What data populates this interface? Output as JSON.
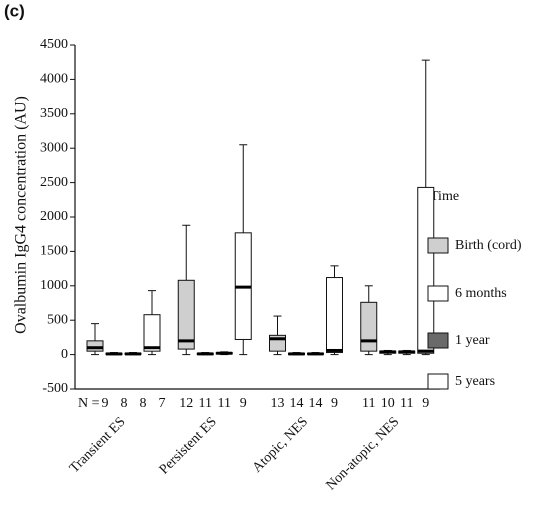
{
  "chart_data": {
    "type": "box",
    "panel_label": "(c)",
    "y_label": "Ovalbumin IgG4 concentration (AU)",
    "legend_title": "Time",
    "n_prefix": "N =",
    "categories": [
      "Transient ES",
      "Persistent ES",
      "Atopic, NES",
      "Non-atopic, NES"
    ],
    "ylim": [
      -500,
      4500
    ],
    "yticks": [
      -500,
      0,
      500,
      1000,
      1500,
      2000,
      2500,
      3000,
      3500,
      4000,
      4500
    ],
    "series": [
      {
        "name": "Birth (cord)",
        "color": "#cfcfcf",
        "n": [
          9,
          12,
          13,
          11
        ],
        "whisker_low": [
          0,
          0,
          0,
          0
        ],
        "q1": [
          50,
          80,
          50,
          50
        ],
        "median": [
          100,
          200,
          230,
          200
        ],
        "q3": [
          200,
          1080,
          280,
          760
        ],
        "whisker_high": [
          450,
          1880,
          560,
          1000
        ]
      },
      {
        "name": "6 months",
        "color": "#ffffff",
        "n": [
          8,
          11,
          14,
          10
        ],
        "whisker_low": [
          0,
          0,
          0,
          0
        ],
        "q1": [
          0,
          0,
          0,
          20
        ],
        "median": [
          10,
          10,
          10,
          40
        ],
        "q3": [
          20,
          20,
          20,
          50
        ],
        "whisker_high": [
          30,
          30,
          30,
          60
        ]
      },
      {
        "name": "1 year",
        "color": "#6a6a6a",
        "n": [
          8,
          11,
          14,
          11
        ],
        "whisker_low": [
          0,
          0,
          0,
          0
        ],
        "q1": [
          5,
          10,
          5,
          20
        ],
        "median": [
          10,
          20,
          10,
          40
        ],
        "q3": [
          20,
          30,
          20,
          50
        ],
        "whisker_high": [
          30,
          40,
          30,
          60
        ]
      },
      {
        "name": "5 years",
        "color": "#ffffff",
        "n": [
          7,
          9,
          9,
          9
        ],
        "whisker_low": [
          0,
          0,
          0,
          0
        ],
        "q1": [
          50,
          220,
          30,
          20
        ],
        "median": [
          100,
          980,
          60,
          50
        ],
        "q3": [
          580,
          1770,
          1120,
          2430
        ],
        "whisker_high": [
          930,
          3050,
          1290,
          4280
        ]
      }
    ]
  }
}
